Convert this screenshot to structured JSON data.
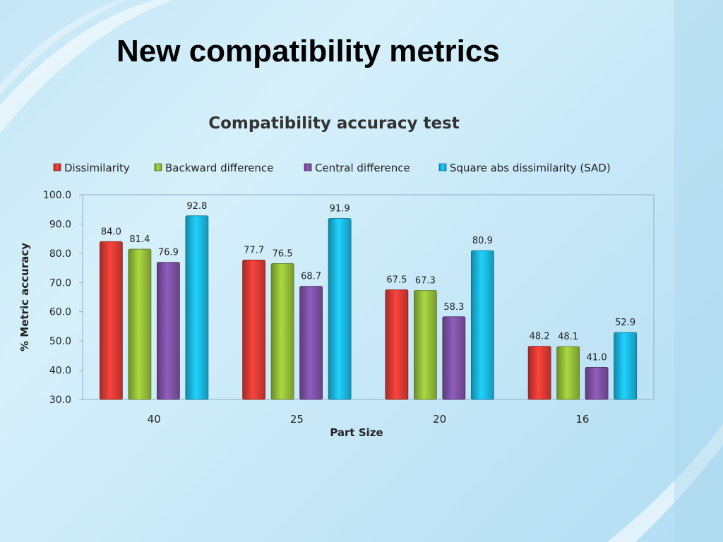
{
  "slide": {
    "title": "New compatibility metrics",
    "colors": {
      "background": "#c9e9f8",
      "swoosh": "#ffffff"
    }
  },
  "chart_data": {
    "type": "bar",
    "title": "Compatibility accuracy test",
    "xlabel": "Part Size",
    "ylabel": "% Metric accuracy",
    "categories": [
      "40",
      "25",
      "20",
      "16"
    ],
    "series": [
      {
        "name": "Dissimilarity",
        "values": [
          84.0,
          77.7,
          67.5,
          48.2
        ],
        "color": "#e03c36"
      },
      {
        "name": "Backward difference",
        "values": [
          81.4,
          76.5,
          67.3,
          48.1
        ],
        "color": "#98c23a"
      },
      {
        "name": "Central difference",
        "values": [
          76.9,
          68.7,
          58.3,
          41.0
        ],
        "color": "#8153a8"
      },
      {
        "name": "Square abs dissimilarity (SAD)",
        "values": [
          92.8,
          91.9,
          80.9,
          52.9
        ],
        "color": "#1bbce8"
      }
    ],
    "ylim": [
      30.0,
      100.0
    ],
    "yticks": [
      "30.0",
      "40.0",
      "50.0",
      "60.0",
      "70.0",
      "80.0",
      "90.0",
      "100.0"
    ],
    "data_labels": [
      [
        "84.0",
        "77.7",
        "67.5",
        "48.2"
      ],
      [
        "81.4",
        "76.5",
        "67.3",
        "48.1"
      ],
      [
        "76.9",
        "68.7",
        "58.3",
        "41.0"
      ],
      [
        "92.8",
        "91.9",
        "80.9",
        "52.9"
      ]
    ],
    "legend_position": "top",
    "grid": false
  }
}
